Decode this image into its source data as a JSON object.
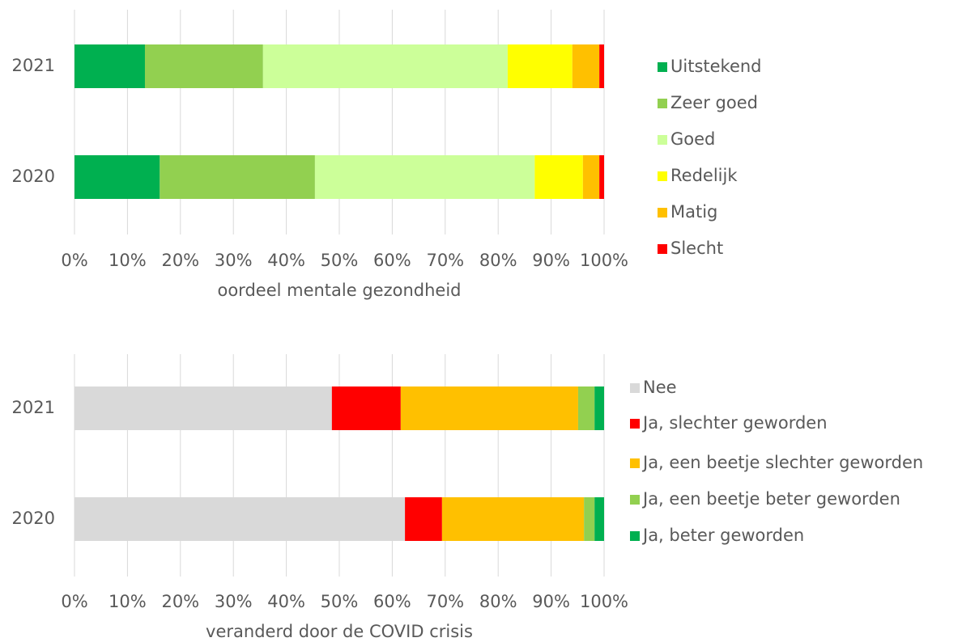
{
  "chart_data": [
    {
      "type": "bar",
      "orientation": "horizontal",
      "stacked": true,
      "xlabel": "oordeel mentale gezondheid",
      "categories": [
        "2021",
        "2020"
      ],
      "series": [
        {
          "name": "Uitstekend",
          "color": "#00b050",
          "values": [
            13.3,
            16.1
          ]
        },
        {
          "name": "Zeer goed",
          "color": "#92d050",
          "values": [
            22.3,
            29.3
          ]
        },
        {
          "name": "Goed",
          "color": "#ccff99",
          "values": [
            46.2,
            41.5
          ]
        },
        {
          "name": "Redelijk",
          "color": "#ffff00",
          "values": [
            12.2,
            9.1
          ]
        },
        {
          "name": "Matig",
          "color": "#ffc000",
          "values": [
            5.1,
            3.1
          ]
        },
        {
          "name": "Slecht",
          "color": "#ff0000",
          "values": [
            0.9,
            0.9
          ]
        }
      ],
      "xlim": [
        0,
        100
      ],
      "xticks": [
        {
          "value": 0,
          "label": "0%"
        },
        {
          "value": 10,
          "label": "10%"
        },
        {
          "value": 20,
          "label": "20%"
        },
        {
          "value": 30,
          "label": "30%"
        },
        {
          "value": 40,
          "label": "40%"
        },
        {
          "value": 50,
          "label": "50%"
        },
        {
          "value": 60,
          "label": "60%"
        },
        {
          "value": 70,
          "label": "70%"
        },
        {
          "value": 80,
          "label": "80%"
        },
        {
          "value": 90,
          "label": "90%"
        },
        {
          "value": 100,
          "label": "100%"
        }
      ],
      "grid": true,
      "legend": "right"
    },
    {
      "type": "bar",
      "orientation": "horizontal",
      "stacked": true,
      "xlabel": "veranderd door de COVID crisis",
      "categories": [
        "2021",
        "2020"
      ],
      "series": [
        {
          "name": "Nee",
          "color": "#d9d9d9",
          "values": [
            48.6,
            62.4
          ]
        },
        {
          "name": "Ja, slechter geworden",
          "color": "#ff0000",
          "values": [
            13.0,
            7.0
          ]
        },
        {
          "name": "Ja, een beetje slechter geworden",
          "color": "#ffc000",
          "values": [
            33.5,
            26.8
          ]
        },
        {
          "name": "Ja, een beetje beter geworden",
          "color": "#92d050",
          "values": [
            3.1,
            2.0
          ]
        },
        {
          "name": "Ja, beter geworden",
          "color": "#00b050",
          "values": [
            1.8,
            1.8
          ]
        }
      ],
      "xlim": [
        0,
        100
      ],
      "xticks": [
        {
          "value": 0,
          "label": "0%"
        },
        {
          "value": 10,
          "label": "10%"
        },
        {
          "value": 20,
          "label": "20%"
        },
        {
          "value": 30,
          "label": "30%"
        },
        {
          "value": 40,
          "label": "40%"
        },
        {
          "value": 50,
          "label": "50%"
        },
        {
          "value": 60,
          "label": "60%"
        },
        {
          "value": 70,
          "label": "70%"
        },
        {
          "value": 80,
          "label": "80%"
        },
        {
          "value": 90,
          "label": "90%"
        },
        {
          "value": 100,
          "label": "100%"
        }
      ],
      "grid": true,
      "legend": "right"
    }
  ]
}
